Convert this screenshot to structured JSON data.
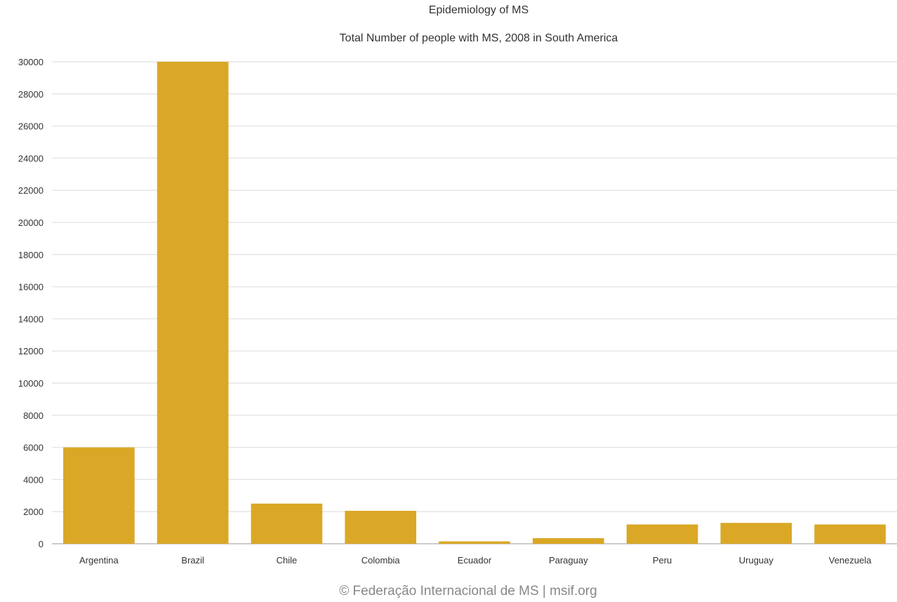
{
  "chart_data": {
    "type": "bar",
    "title": "Epidemiology of MS",
    "subtitle": "Total Number of people with MS, 2008 in South America",
    "categories": [
      "Argentina",
      "Brazil",
      "Chile",
      "Colombia",
      "Ecuador",
      "Paraguay",
      "Peru",
      "Uruguay",
      "Venezuela"
    ],
    "values": [
      6000,
      30000,
      2500,
      2050,
      150,
      350,
      1200,
      1300,
      1200
    ],
    "ylim": [
      0,
      30000
    ],
    "yticks": [
      0,
      2000,
      4000,
      6000,
      8000,
      10000,
      12000,
      14000,
      16000,
      18000,
      20000,
      22000,
      24000,
      26000,
      28000,
      30000
    ],
    "xlabel": "",
    "ylabel": "",
    "grid": true,
    "legend": "none",
    "bar_color": "#DAA826",
    "grid_color": "#e6e6e6"
  },
  "credit": "© Federação Internacional de MS | msif.org"
}
